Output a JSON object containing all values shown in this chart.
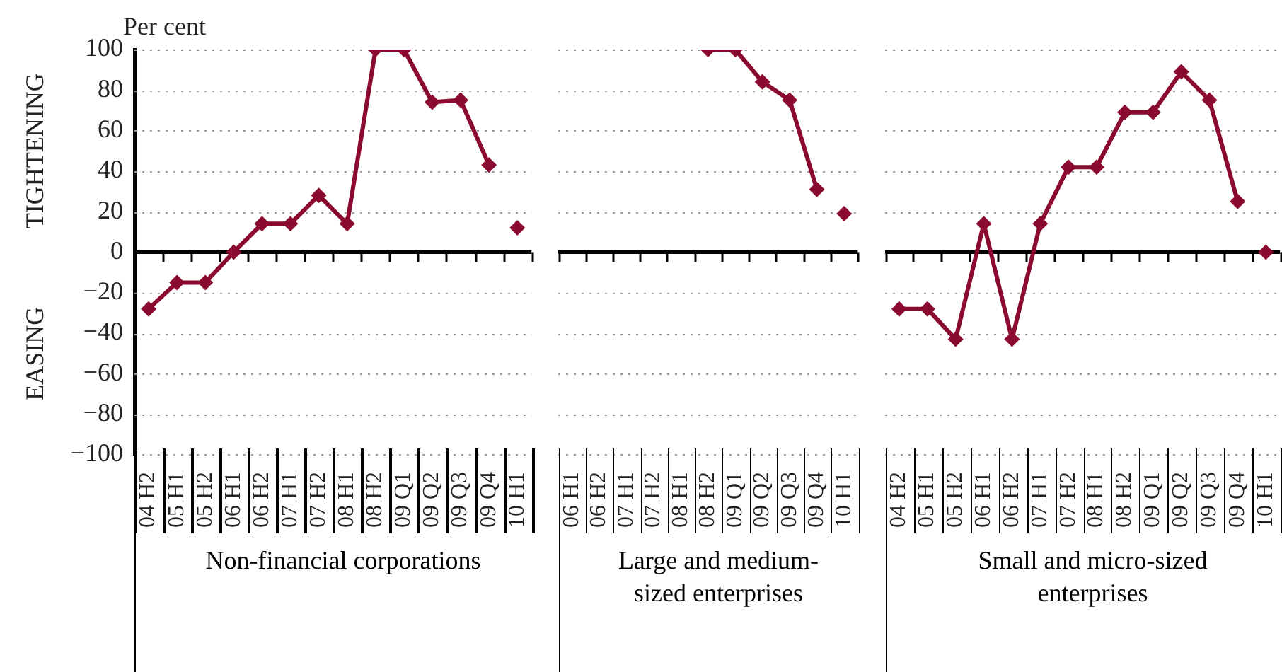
{
  "chart_data": [
    {
      "type": "line",
      "ylabel": "Per cent",
      "xlabel": "Non-financial corporations",
      "annotations": [
        "TIGHTENING",
        "EASING"
      ],
      "categories": [
        "04 H2",
        "05 H1",
        "05 H2",
        "06 H1",
        "06 H2",
        "07 H1",
        "07 H2",
        "08 H1",
        "08 H2",
        "09 Q1",
        "09 Q2",
        "09 Q3",
        "09 Q4",
        "10 H1"
      ],
      "series": [
        {
          "color": "#8b0a2f",
          "values": [
            -28,
            -15,
            -15,
            0,
            14,
            14,
            28,
            14,
            100,
            100,
            74,
            75,
            43,
            null
          ]
        },
        {
          "type": "scatter",
          "color": "#8b0a2f",
          "values": [
            null,
            null,
            null,
            null,
            null,
            null,
            null,
            null,
            null,
            null,
            null,
            null,
            null,
            12
          ]
        }
      ],
      "ylim": [
        -100,
        100
      ],
      "yticks": [
        -100,
        -80,
        -60,
        -40,
        -20,
        0,
        20,
        40,
        60,
        80,
        100
      ],
      "grid": "y",
      "marker": "diamond",
      "legend": false
    },
    {
      "type": "line",
      "xlabel": "Large and medium-sized enterprises",
      "categories": [
        "06 H1",
        "06 H2",
        "07 H1",
        "07 H2",
        "08 H1",
        "08 H2",
        "09 Q1",
        "09 Q2",
        "09 Q3",
        "09 Q4",
        "10 H1"
      ],
      "series": [
        {
          "color": "#8b0a2f",
          "values": [
            null,
            null,
            null,
            null,
            null,
            100,
            100,
            84,
            75,
            31,
            null
          ]
        },
        {
          "type": "scatter",
          "color": "#8b0a2f",
          "values": [
            null,
            null,
            null,
            null,
            null,
            null,
            null,
            null,
            null,
            null,
            19
          ]
        }
      ],
      "ylim": [
        -100,
        100
      ],
      "yticks": [
        -100,
        -80,
        -60,
        -40,
        -20,
        0,
        20,
        40,
        60,
        80,
        100
      ],
      "tick_labels": "x",
      "grid": "y",
      "marker": "diamond",
      "legend": false
    },
    {
      "type": "line",
      "xlabel": "Small and micro-sized enterprises",
      "categories": [
        "04 H2",
        "05 H1",
        "05 H2",
        "06 H1",
        "06 H2",
        "07 H1",
        "07 H2",
        "08 H1",
        "08 H2",
        "09 Q1",
        "09 Q2",
        "09 Q3",
        "09 Q4",
        "10 H1"
      ],
      "series": [
        {
          "color": "#8b0a2f",
          "values": [
            -28,
            -28,
            -43,
            14,
            -43,
            14,
            42,
            42,
            69,
            69,
            89,
            75,
            25,
            null
          ]
        },
        {
          "type": "scatter",
          "color": "#8b0a2f",
          "values": [
            null,
            null,
            null,
            null,
            null,
            null,
            null,
            null,
            null,
            null,
            null,
            null,
            null,
            0
          ]
        }
      ],
      "ylim": [
        -100,
        100
      ],
      "yticks": [
        -100,
        -80,
        -60,
        -40,
        -20,
        0,
        20,
        40,
        60,
        80,
        100
      ],
      "tick_labels": "x",
      "grid": "y",
      "marker": "diamond",
      "legend": false
    }
  ]
}
